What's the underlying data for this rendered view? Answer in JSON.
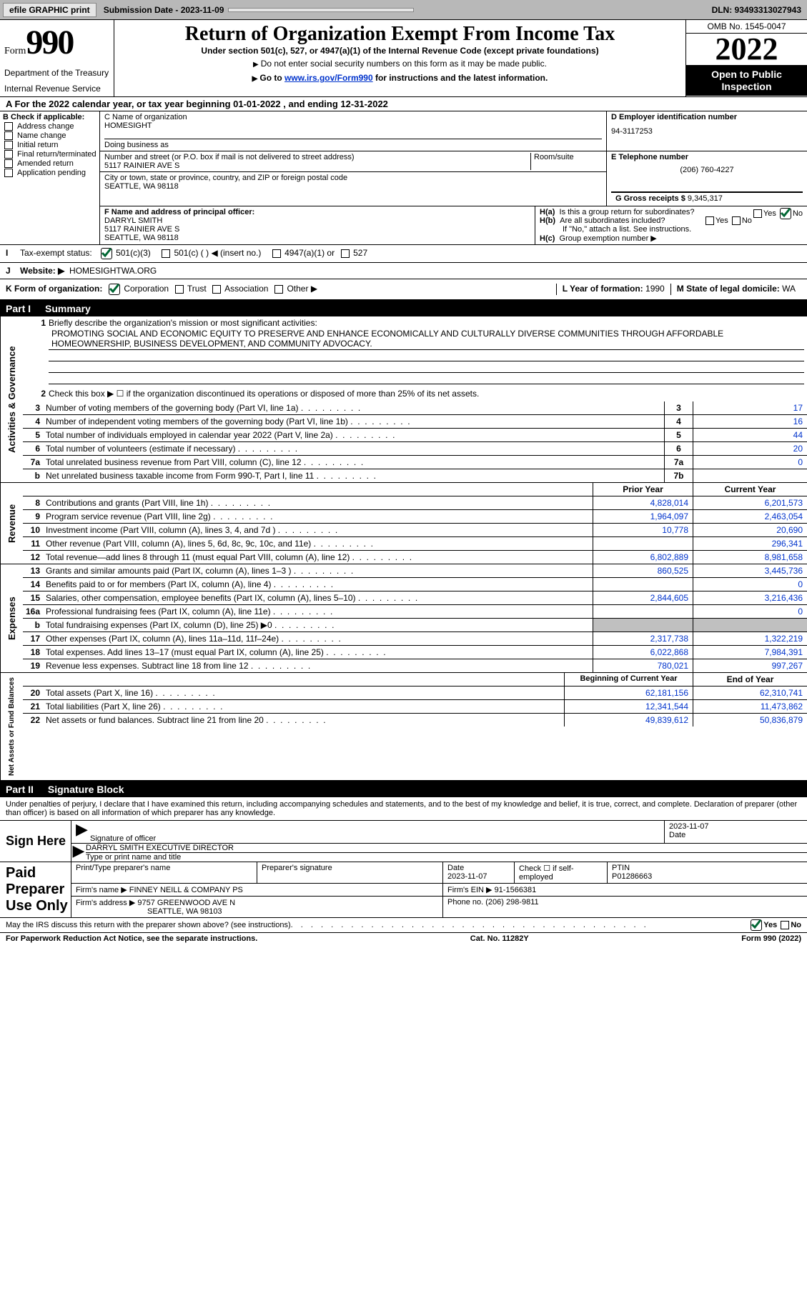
{
  "topbar": {
    "efile_btn": "efile GRAPHIC print",
    "submission_date_label": "Submission Date - 2023-11-09",
    "dln_label": "DLN: 93493313027943"
  },
  "header": {
    "form_word": "Form",
    "form_num": "990",
    "title": "Return of Organization Exempt From Income Tax",
    "sub1": "Under section 501(c), 527, or 4947(a)(1) of the Internal Revenue Code (except private foundations)",
    "sub2_prefix": "Do not enter social security numbers on this form as it may be made public.",
    "sub3_prefix": "Go to ",
    "sub3_link": "www.irs.gov/Form990",
    "sub3_suffix": " for instructions and the latest information.",
    "omb": "OMB No. 1545-0047",
    "year": "2022",
    "open_public": "Open to Public Inspection",
    "dept": "Department of the Treasury",
    "irs": "Internal Revenue Service"
  },
  "line_a": "A For the 2022 calendar year, or tax year beginning 01-01-2022    , and ending 12-31-2022",
  "section_b": {
    "label": "B Check if applicable:",
    "items": [
      "Address change",
      "Name change",
      "Initial return",
      "Final return/terminated",
      "Amended return",
      "Application pending"
    ]
  },
  "section_c": {
    "name_label": "C Name of organization",
    "org_name": "HOMESIGHT",
    "dba_label": "Doing business as",
    "street_label": "Number and street (or P.O. box if mail is not delivered to street address)",
    "room_label": "Room/suite",
    "street": "5117 RAINIER AVE S",
    "city_label": "City or town, state or province, country, and ZIP or foreign postal code",
    "city": "SEATTLE, WA  98118"
  },
  "section_d": {
    "label": "D Employer identification number",
    "ein": "94-3117253"
  },
  "section_e": {
    "label": "E Telephone number",
    "tel": "(206) 760-4227"
  },
  "section_g": {
    "label": "G Gross receipts $",
    "amount": "9,345,317"
  },
  "section_f": {
    "label": "F Name and address of principal officer:",
    "name": "DARRYL SMITH",
    "street": "5117 RAINIER AVE S",
    "city": "SEATTLE, WA  98118"
  },
  "section_h": {
    "ha": "Is this a group return for subordinates?",
    "hb": "Are all subordinates included?",
    "hb_note": "If \"No,\" attach a list. See instructions.",
    "hc": "Group exemption number ▶"
  },
  "row_i": {
    "label": "Tax-exempt status:",
    "opt1": "501(c)(3)",
    "opt2": "501(c) (   ) ◀ (insert no.)",
    "opt3": "4947(a)(1) or",
    "opt4": "527"
  },
  "row_j": {
    "label": "Website: ▶",
    "value": "HOMESIGHTWA.ORG"
  },
  "row_k": {
    "label": "K Form of organization:",
    "opts": [
      "Corporation",
      "Trust",
      "Association",
      "Other ▶"
    ],
    "l_label": "L Year of formation:",
    "l_val": "1990",
    "m_label": "M State of legal domicile:",
    "m_val": "WA"
  },
  "part1": {
    "label": "Part I",
    "title": "Summary"
  },
  "summary": {
    "q1_label": "Briefly describe the organization's mission or most significant activities:",
    "q1_text": "PROMOTING SOCIAL AND ECONOMIC EQUITY TO PRESERVE AND ENHANCE ECONOMICALLY AND CULTURALLY DIVERSE COMMUNITIES THROUGH AFFORDABLE HOMEOWNERSHIP, BUSINESS DEVELOPMENT, AND COMMUNITY ADVOCACY.",
    "q2": "Check this box ▶ ☐ if the organization discontinued its operations or disposed of more than 25% of its net assets.",
    "lines_gov": [
      {
        "n": "3",
        "d": "Number of voting members of the governing body (Part VI, line 1a)",
        "box": "3",
        "v": "17"
      },
      {
        "n": "4",
        "d": "Number of independent voting members of the governing body (Part VI, line 1b)",
        "box": "4",
        "v": "16"
      },
      {
        "n": "5",
        "d": "Total number of individuals employed in calendar year 2022 (Part V, line 2a)",
        "box": "5",
        "v": "44"
      },
      {
        "n": "6",
        "d": "Total number of volunteers (estimate if necessary)",
        "box": "6",
        "v": "20"
      },
      {
        "n": "7a",
        "d": "Total unrelated business revenue from Part VIII, column (C), line 12",
        "box": "7a",
        "v": "0"
      },
      {
        "n": "b",
        "d": "Net unrelated business taxable income from Form 990-T, Part I, line 11",
        "box": "7b",
        "v": ""
      }
    ],
    "hdr_prior": "Prior Year",
    "hdr_current": "Current Year",
    "lines_rev": [
      {
        "n": "8",
        "d": "Contributions and grants (Part VIII, line 1h)",
        "p": "4,828,014",
        "c": "6,201,573"
      },
      {
        "n": "9",
        "d": "Program service revenue (Part VIII, line 2g)",
        "p": "1,964,097",
        "c": "2,463,054"
      },
      {
        "n": "10",
        "d": "Investment income (Part VIII, column (A), lines 3, 4, and 7d )",
        "p": "10,778",
        "c": "20,690"
      },
      {
        "n": "11",
        "d": "Other revenue (Part VIII, column (A), lines 5, 6d, 8c, 9c, 10c, and 11e)",
        "p": "",
        "c": "296,341"
      },
      {
        "n": "12",
        "d": "Total revenue—add lines 8 through 11 (must equal Part VIII, column (A), line 12)",
        "p": "6,802,889",
        "c": "8,981,658"
      }
    ],
    "lines_exp": [
      {
        "n": "13",
        "d": "Grants and similar amounts paid (Part IX, column (A), lines 1–3 )",
        "p": "860,525",
        "c": "3,445,736"
      },
      {
        "n": "14",
        "d": "Benefits paid to or for members (Part IX, column (A), line 4)",
        "p": "",
        "c": "0"
      },
      {
        "n": "15",
        "d": "Salaries, other compensation, employee benefits (Part IX, column (A), lines 5–10)",
        "p": "2,844,605",
        "c": "3,216,436"
      },
      {
        "n": "16a",
        "d": "Professional fundraising fees (Part IX, column (A), line 11e)",
        "p": "",
        "c": "0"
      },
      {
        "n": "b",
        "d": "Total fundraising expenses (Part IX, column (D), line 25) ▶0",
        "p": "grey",
        "c": "grey"
      },
      {
        "n": "17",
        "d": "Other expenses (Part IX, column (A), lines 11a–11d, 11f–24e)",
        "p": "2,317,738",
        "c": "1,322,219"
      },
      {
        "n": "18",
        "d": "Total expenses. Add lines 13–17 (must equal Part IX, column (A), line 25)",
        "p": "6,022,868",
        "c": "7,984,391"
      },
      {
        "n": "19",
        "d": "Revenue less expenses. Subtract line 18 from line 12",
        "p": "780,021",
        "c": "997,267"
      }
    ],
    "hdr_beg": "Beginning of Current Year",
    "hdr_end": "End of Year",
    "lines_net": [
      {
        "n": "20",
        "d": "Total assets (Part X, line 16)",
        "p": "62,181,156",
        "c": "62,310,741"
      },
      {
        "n": "21",
        "d": "Total liabilities (Part X, line 26)",
        "p": "12,341,544",
        "c": "11,473,862"
      },
      {
        "n": "22",
        "d": "Net assets or fund balances. Subtract line 21 from line 20",
        "p": "49,839,612",
        "c": "50,836,879"
      }
    ],
    "vlabels": {
      "gov": "Activities & Governance",
      "rev": "Revenue",
      "exp": "Expenses",
      "net": "Net Assets or Fund Balances"
    }
  },
  "part2": {
    "label": "Part II",
    "title": "Signature Block"
  },
  "sig": {
    "declare": "Under penalties of perjury, I declare that I have examined this return, including accompanying schedules and statements, and to the best of my knowledge and belief, it is true, correct, and complete. Declaration of preparer (other than officer) is based on all information of which preparer has any knowledge.",
    "sign_here": "Sign Here",
    "sig_of_officer": "Signature of officer",
    "date": "Date",
    "sig_date": "2023-11-07",
    "officer_name": "DARRYL SMITH  EXECUTIVE DIRECTOR",
    "type_print": "Type or print name and title",
    "paid_label": "Paid Preparer Use Only",
    "print_name_h": "Print/Type preparer's name",
    "prep_sig_h": "Preparer's signature",
    "date_h": "Date",
    "prep_date": "2023-11-07",
    "check_self": "Check ☐ if self-employed",
    "ptin_h": "PTIN",
    "ptin": "P01286663",
    "firm_name_l": "Firm's name      ▶",
    "firm_name": "FINNEY NEILL & COMPANY PS",
    "firm_ein_l": "Firm's EIN ▶",
    "firm_ein": "91-1566381",
    "firm_addr_l": "Firm's address ▶",
    "firm_addr1": "9757 GREENWOOD AVE N",
    "firm_addr2": "SEATTLE, WA  98103",
    "phone_l": "Phone no.",
    "phone": "(206) 298-9811"
  },
  "footer": {
    "discuss": "May the IRS discuss this return with the preparer shown above? (see instructions)",
    "yes": "Yes",
    "no": "No",
    "paperwork": "For Paperwork Reduction Act Notice, see the separate instructions.",
    "cat": "Cat. No. 11282Y",
    "form": "Form 990 (2022)"
  }
}
